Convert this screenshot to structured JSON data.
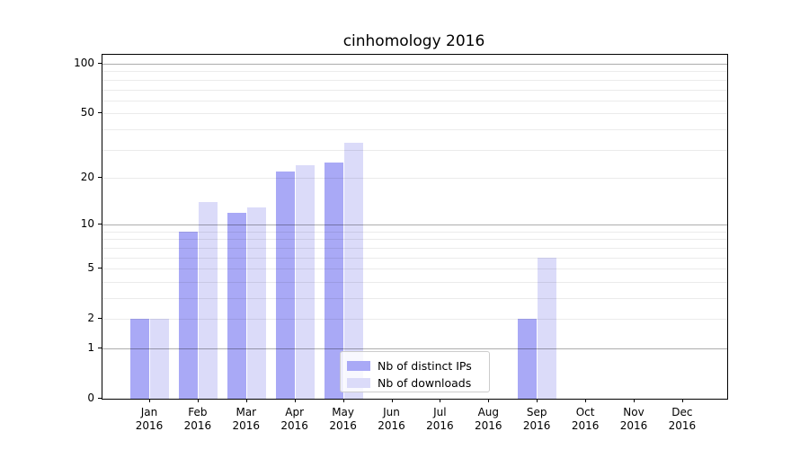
{
  "chart_data": {
    "type": "bar",
    "title": "cinhomology 2016",
    "year_label": "2016",
    "categories": [
      "Jan",
      "Feb",
      "Mar",
      "Apr",
      "May",
      "Jun",
      "Jul",
      "Aug",
      "Sep",
      "Oct",
      "Nov",
      "Dec"
    ],
    "series": [
      {
        "name": "Nb of distinct IPs",
        "color": "#a9a9f6",
        "values": [
          2,
          9,
          12,
          22,
          25,
          0,
          0,
          0,
          2,
          0,
          0,
          0
        ]
      },
      {
        "name": "Nb of downloads",
        "color": "#dbdbf9",
        "values": [
          2,
          14,
          13,
          24,
          33,
          0,
          0,
          0,
          6,
          0,
          0,
          0
        ]
      }
    ],
    "yscale": "log1p",
    "ylim": [
      0,
      113
    ],
    "yticks": [
      0,
      1,
      2,
      5,
      10,
      20,
      50,
      100
    ],
    "grid_major": [
      1,
      10,
      100
    ],
    "grid_minor": [
      2,
      3,
      4,
      5,
      6,
      7,
      8,
      9,
      20,
      30,
      40,
      50,
      60,
      70,
      80,
      90
    ],
    "legend_position": "lower-center",
    "xlabel": "",
    "ylabel": ""
  }
}
